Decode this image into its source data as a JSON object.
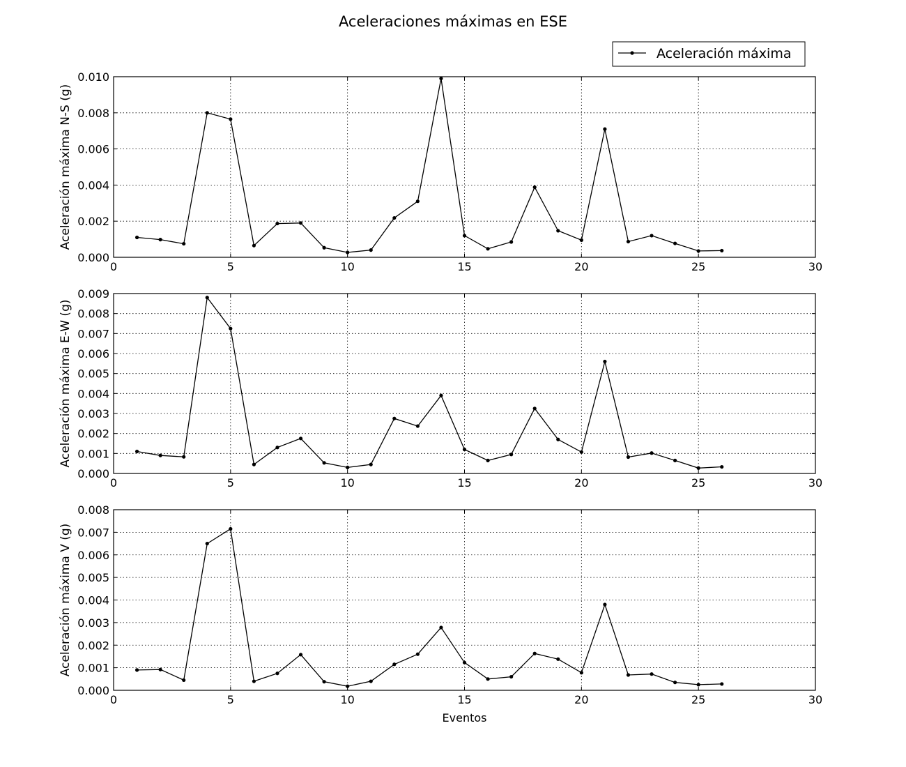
{
  "title": "Aceleraciones máximas en ESE",
  "legend": {
    "label": "Aceleración máxima",
    "placement": "top-right"
  },
  "chart_data": [
    {
      "type": "line",
      "ylabel": "Aceleración máxima N-S (g)",
      "xlabel": "",
      "xlim": [
        0,
        30
      ],
      "ylim": [
        0,
        0.01
      ],
      "xticks": [
        "0",
        "5",
        "10",
        "15",
        "20",
        "25",
        "30"
      ],
      "yticks": [
        "0.000",
        "0.002",
        "0.004",
        "0.006",
        "0.008",
        "0.010"
      ],
      "grid": true,
      "x": [
        1,
        2,
        3,
        4,
        5,
        6,
        7,
        8,
        9,
        10,
        11,
        12,
        13,
        14,
        15,
        16,
        17,
        18,
        19,
        20,
        21,
        22,
        23,
        24,
        25,
        26
      ],
      "series": [
        {
          "name": "Aceleración máxima",
          "color": "#000000",
          "values": [
            0.0011,
            0.00098,
            0.00075,
            0.008,
            0.00765,
            0.00065,
            0.00187,
            0.0019,
            0.00053,
            0.00027,
            0.0004,
            0.00218,
            0.0031,
            0.0099,
            0.0012,
            0.00047,
            0.00085,
            0.00388,
            0.00147,
            0.00095,
            0.0071,
            0.00087,
            0.0012,
            0.00077,
            0.00035,
            0.00037
          ]
        }
      ]
    },
    {
      "type": "line",
      "ylabel": "Aceleración máxima E-W (g)",
      "xlabel": "",
      "xlim": [
        0,
        30
      ],
      "ylim": [
        0,
        0.009
      ],
      "xticks": [
        "0",
        "5",
        "10",
        "15",
        "20",
        "25",
        "30"
      ],
      "yticks": [
        "0.000",
        "0.001",
        "0.002",
        "0.003",
        "0.004",
        "0.005",
        "0.006",
        "0.007",
        "0.008",
        "0.009"
      ],
      "grid": true,
      "x": [
        1,
        2,
        3,
        4,
        5,
        6,
        7,
        8,
        9,
        10,
        11,
        12,
        13,
        14,
        15,
        16,
        17,
        18,
        19,
        20,
        21,
        22,
        23,
        24,
        25,
        26
      ],
      "series": [
        {
          "name": "Aceleración máxima",
          "color": "#000000",
          "values": [
            0.0011,
            0.0009,
            0.00083,
            0.0088,
            0.00725,
            0.00045,
            0.0013,
            0.00175,
            0.00053,
            0.0003,
            0.00045,
            0.00275,
            0.00237,
            0.0039,
            0.0012,
            0.00065,
            0.00095,
            0.00325,
            0.0017,
            0.00107,
            0.0056,
            0.00082,
            0.00102,
            0.00065,
            0.00027,
            0.00033
          ]
        }
      ]
    },
    {
      "type": "line",
      "ylabel": "Aceleración máxima V (g)",
      "xlabel": "Eventos",
      "xlim": [
        0,
        30
      ],
      "ylim": [
        0,
        0.008
      ],
      "xticks": [
        "0",
        "5",
        "10",
        "15",
        "20",
        "25",
        "30"
      ],
      "yticks": [
        "0.000",
        "0.001",
        "0.002",
        "0.003",
        "0.004",
        "0.005",
        "0.006",
        "0.007",
        "0.008"
      ],
      "grid": true,
      "x": [
        1,
        2,
        3,
        4,
        5,
        6,
        7,
        8,
        9,
        10,
        11,
        12,
        13,
        14,
        15,
        16,
        17,
        18,
        19,
        20,
        21,
        22,
        23,
        24,
        25,
        26
      ],
      "series": [
        {
          "name": "Aceleración máxima",
          "color": "#000000",
          "values": [
            0.0009,
            0.00092,
            0.00045,
            0.0065,
            0.00715,
            0.0004,
            0.00075,
            0.00158,
            0.00038,
            0.00018,
            0.0004,
            0.00115,
            0.0016,
            0.00278,
            0.00123,
            0.0005,
            0.0006,
            0.00163,
            0.00138,
            0.00078,
            0.0038,
            0.00068,
            0.00072,
            0.00035,
            0.00025,
            0.00028
          ]
        }
      ]
    }
  ]
}
